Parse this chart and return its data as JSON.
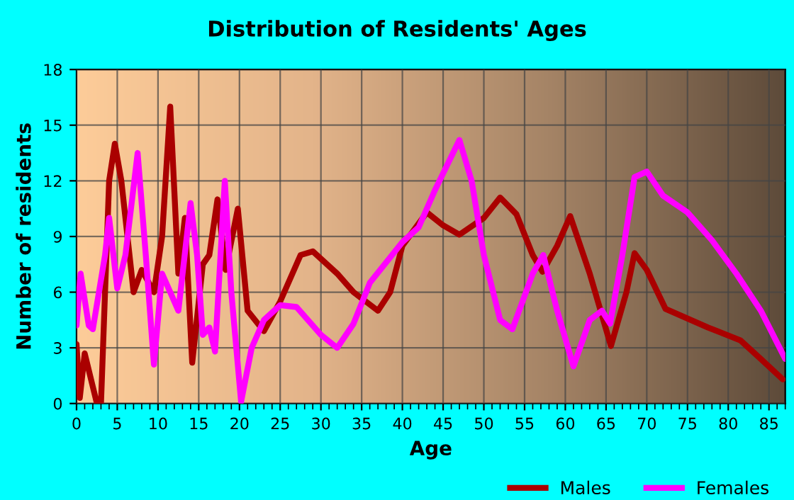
{
  "chart_data": {
    "type": "line",
    "title": "Distribution of Residents' Ages",
    "xlabel": "Age",
    "ylabel": "Number of residents",
    "xlim": [
      0,
      87
    ],
    "xticks": [
      0,
      5,
      10,
      15,
      20,
      25,
      30,
      35,
      40,
      45,
      50,
      55,
      60,
      65,
      70,
      75,
      80,
      85
    ],
    "ylim": [
      0,
      18
    ],
    "yticks": [
      0,
      3,
      6,
      9,
      12,
      15,
      18
    ],
    "grid": true,
    "legend": "bottom right",
    "series": [
      {
        "name": "Males",
        "color": "#aa0000",
        "x": [
          0,
          0.4,
          1,
          2.5,
          3,
          4,
          4.7,
          5.5,
          7,
          8,
          9.5,
          10.5,
          11.5,
          12.5,
          13.3,
          14.2,
          15.5,
          16.3,
          17.3,
          18.3,
          19.8,
          21,
          23,
          25,
          27.5,
          29,
          32,
          34,
          37,
          38.5,
          40,
          43,
          45,
          47,
          50,
          52,
          54,
          56,
          57.2,
          59,
          60.6,
          63,
          65.6,
          67.5,
          68.5,
          70,
          72.3,
          77.5,
          81.5,
          84,
          86.7
        ],
        "values": [
          3.2,
          0.3,
          2.7,
          0,
          0,
          12,
          14,
          12,
          6,
          7.2,
          6,
          9,
          16,
          7,
          10,
          2.2,
          7.5,
          8,
          11,
          7.2,
          10.5,
          5,
          3.9,
          5.5,
          8,
          8.2,
          7,
          6,
          5,
          6,
          8.5,
          10.3,
          9.6,
          9.1,
          10,
          11.1,
          10.2,
          8,
          7.1,
          8.5,
          10.1,
          7,
          3.1,
          6,
          8.1,
          7.2,
          5.1,
          4.1,
          3.4,
          2.4,
          1.3
        ]
      },
      {
        "name": "Females",
        "color": "#ff00ff",
        "x": [
          0,
          0.5,
          1.5,
          2,
          3.5,
          4,
          5,
          6,
          7.5,
          8.5,
          9.5,
          10.5,
          11.5,
          12.5,
          14,
          14.8,
          15.5,
          16.3,
          17,
          18.2,
          19,
          20.2,
          21.5,
          23,
          25,
          27,
          30,
          32,
          34,
          36,
          40,
          42,
          44,
          47,
          48.5,
          50,
          52,
          53.5,
          56,
          57.3,
          59,
          61,
          63,
          64.5,
          65.5,
          67,
          68.5,
          70,
          72,
          75,
          78,
          81,
          84,
          87
        ],
        "values": [
          4.2,
          7,
          4.2,
          4,
          8,
          10,
          6.2,
          8,
          13.5,
          8,
          2.1,
          7,
          6,
          5,
          10.8,
          8,
          3.7,
          4.1,
          2.8,
          12,
          6,
          0.1,
          3,
          4.5,
          5.3,
          5.2,
          3.7,
          3,
          4.3,
          6.5,
          8.7,
          9.5,
          11.5,
          14.2,
          12,
          8,
          4.5,
          4,
          7,
          8,
          5,
          2,
          4.5,
          5,
          4.3,
          8,
          12.2,
          12.5,
          11.2,
          10.3,
          8.8,
          7,
          5,
          2.4
        ]
      }
    ]
  }
}
